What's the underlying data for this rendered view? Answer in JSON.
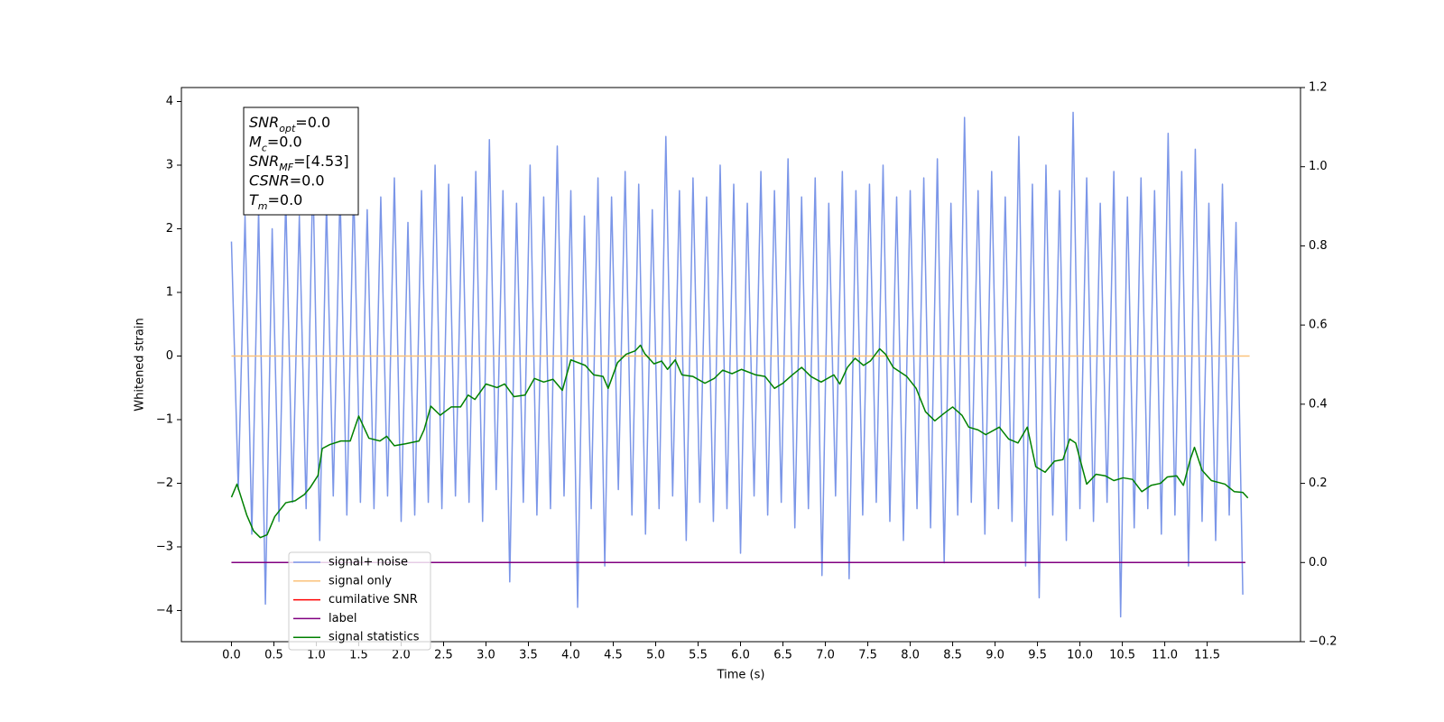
{
  "chart_data": {
    "type": "line",
    "xlabel": "Time (s)",
    "ylabel": "Whitened strain",
    "xlim": [
      -0.59,
      12.6
    ],
    "ylim": [
      -4.49,
      4.22
    ],
    "y2lim": [
      -0.2,
      1.2
    ],
    "xticks": [
      {
        "value": 0,
        "label": "0.0"
      },
      0.5,
      {
        "value": 1,
        "label": "1.0"
      },
      1.5,
      {
        "value": 2,
        "label": "2.0"
      },
      2.5,
      {
        "value": 3,
        "label": "3.0"
      },
      3.5,
      {
        "value": 4,
        "label": "4.0"
      },
      4.5,
      {
        "value": 5,
        "label": "5.0"
      },
      5.5,
      {
        "value": 6,
        "label": "6.0"
      },
      6.5,
      {
        "value": 7,
        "label": "7.0"
      },
      7.5,
      {
        "value": 8,
        "label": "8.0"
      },
      8.5,
      {
        "value": 9,
        "label": "9.0"
      },
      9.5,
      {
        "value": 10,
        "label": "10.0"
      },
      10.5,
      {
        "value": 11,
        "label": "11.0"
      },
      11.5
    ],
    "yticks": [
      {
        "value": -4,
        "label": "−4"
      },
      {
        "value": -3,
        "label": "−3"
      },
      {
        "value": -2,
        "label": "−2"
      },
      {
        "value": -1,
        "label": "−1"
      },
      0,
      1,
      2,
      3,
      4
    ],
    "y2ticks": [
      {
        "value": -0.2,
        "label": "−0.2"
      },
      {
        "value": 0,
        "label": "0.0"
      },
      0.2,
      0.4,
      0.6,
      0.8,
      {
        "value": 1,
        "label": "1.0"
      },
      1.2
    ],
    "legend": "lower left",
    "annotation": [
      {
        "main": "SNR",
        "sub": "opt",
        "rest": "=0.0"
      },
      {
        "main": "M",
        "sub": "c",
        "rest": "=0.0"
      },
      {
        "main": "SNR",
        "sub": "MF",
        "rest": "=[4.53]"
      },
      {
        "main": "CSNR",
        "rest": "=0.0"
      },
      {
        "main": "T",
        "sub": "m",
        "rest": "=0.0"
      }
    ],
    "series": [
      {
        "name": "signal+ noise",
        "color": "#7b96e8",
        "x": [
          0,
          0.08,
          0.16,
          0.24,
          0.32,
          0.4,
          0.48,
          0.56,
          0.64,
          0.72,
          0.8,
          0.88,
          0.96,
          1.04,
          1.12,
          1.2,
          1.28,
          1.36,
          1.44,
          1.52,
          1.6,
          1.68,
          1.76,
          1.84,
          1.92,
          2,
          2.08,
          2.16,
          2.24,
          2.32,
          2.4,
          2.48,
          2.56,
          2.64,
          2.72,
          2.8,
          2.88,
          2.96,
          3.04,
          3.12,
          3.2,
          3.28,
          3.36,
          3.44,
          3.52,
          3.6,
          3.68,
          3.76,
          3.84,
          3.92,
          4,
          4.08,
          4.16,
          4.24,
          4.32,
          4.4,
          4.48,
          4.56,
          4.64,
          4.72,
          4.8,
          4.88,
          4.96,
          5.04,
          5.12,
          5.2,
          5.28,
          5.36,
          5.44,
          5.52,
          5.6,
          5.68,
          5.76,
          5.84,
          5.92,
          6,
          6.08,
          6.16,
          6.24,
          6.32,
          6.4,
          6.48,
          6.56,
          6.64,
          6.72,
          6.8,
          6.88,
          6.96,
          7.04,
          7.12,
          7.2,
          7.28,
          7.36,
          7.44,
          7.52,
          7.6,
          7.68,
          7.76,
          7.84,
          7.92,
          8,
          8.08,
          8.16,
          8.24,
          8.32,
          8.4,
          8.48,
          8.56,
          8.64,
          8.72,
          8.8,
          8.88,
          8.96,
          9.04,
          9.12,
          9.2,
          9.28,
          9.36,
          9.44,
          9.52,
          9.6,
          9.68,
          9.76,
          9.84,
          9.92,
          10,
          10.08,
          10.16,
          10.24,
          10.32,
          10.4,
          10.48,
          10.56,
          10.64,
          10.72,
          10.8,
          10.88,
          10.96,
          11.04,
          11.12,
          11.2,
          11.28,
          11.36,
          11.44,
          11.52,
          11.6,
          11.68,
          11.76,
          11.84,
          11.92
        ],
        "values": [
          1.8,
          -2.1,
          2.2,
          -2.8,
          2.3,
          -3.9,
          2.0,
          -2.6,
          2.5,
          -2.3,
          2.2,
          -2.4,
          2.9,
          -2.9,
          2.4,
          -2.2,
          2.6,
          -2.5,
          2.7,
          -2.3,
          2.3,
          -2.4,
          2.5,
          -2.2,
          2.8,
          -2.6,
          2.1,
          -2.5,
          2.6,
          -2.3,
          3.0,
          -2.4,
          2.7,
          -2.2,
          2.5,
          -2.3,
          2.9,
          -2.6,
          3.4,
          -2.1,
          2.6,
          -3.55,
          2.4,
          -2.3,
          3.0,
          -2.5,
          2.5,
          -2.4,
          3.3,
          -2.2,
          2.6,
          -3.95,
          2.2,
          -2.4,
          2.8,
          -3.3,
          2.5,
          -2.1,
          2.9,
          -2.5,
          2.7,
          -2.8,
          2.3,
          -2.4,
          3.45,
          -2.2,
          2.6,
          -2.9,
          2.8,
          -2.3,
          2.5,
          -2.6,
          3.0,
          -2.4,
          2.7,
          -3.1,
          2.4,
          -2.2,
          2.9,
          -2.5,
          2.6,
          -2.3,
          3.1,
          -2.7,
          2.5,
          -2.4,
          2.8,
          -3.45,
          2.4,
          -2.2,
          2.9,
          -3.5,
          2.6,
          -2.5,
          2.7,
          -2.3,
          3.0,
          -2.6,
          2.5,
          -2.9,
          2.6,
          -2.4,
          2.8,
          -2.7,
          3.1,
          -3.25,
          2.4,
          -2.5,
          3.75,
          -2.3,
          2.6,
          -2.8,
          2.9,
          -2.4,
          2.5,
          -2.6,
          3.45,
          -3.3,
          2.7,
          -3.8,
          3.0,
          -2.5,
          2.6,
          -2.9,
          3.83,
          -2.4,
          2.8,
          -2.6,
          2.4,
          -2.3,
          2.9,
          -4.1,
          2.5,
          -2.7,
          2.8,
          -2.4,
          2.6,
          -2.8,
          3.5,
          -2.5,
          2.9,
          -3.3,
          3.25,
          -2.6,
          2.4,
          -2.9,
          2.7,
          -2.5,
          2.1,
          -3.75
        ]
      },
      {
        "name": "signal only",
        "color": "#fbc27a",
        "x": [
          0,
          12
        ],
        "values": [
          0,
          0
        ]
      },
      {
        "name": "cumilative SNR",
        "color": "#ff0000",
        "axis": "y2",
        "x": [
          0,
          11.95
        ],
        "values": [
          0,
          0
        ]
      },
      {
        "name": "label",
        "color": "#800080",
        "axis": "y2",
        "x": [
          0,
          11.95
        ],
        "values": [
          0,
          0
        ]
      },
      {
        "name": "signal statistics",
        "color": "#008000",
        "axis": "y2",
        "x": [
          0,
          0.065,
          0.18,
          0.26,
          0.34,
          0.42,
          0.51,
          0.64,
          0.75,
          0.86,
          0.93,
          1.02,
          1.07,
          1.16,
          1.29,
          1.4,
          1.5,
          1.62,
          1.75,
          1.83,
          1.92,
          2.05,
          2.21,
          2.27,
          2.35,
          2.46,
          2.59,
          2.7,
          2.79,
          2.87,
          3.0,
          3.13,
          3.22,
          3.33,
          3.46,
          3.57,
          3.68,
          3.79,
          3.9,
          4.0,
          4.17,
          4.27,
          4.38,
          4.44,
          4.55,
          4.65,
          4.76,
          4.82,
          4.87,
          4.98,
          5.07,
          5.14,
          5.23,
          5.31,
          5.44,
          5.58,
          5.69,
          5.79,
          5.9,
          6.01,
          6.18,
          6.29,
          6.4,
          6.5,
          6.61,
          6.72,
          6.83,
          6.95,
          7.1,
          7.17,
          7.26,
          7.35,
          7.45,
          7.53,
          7.64,
          7.71,
          7.8,
          7.96,
          8.07,
          8.18,
          8.29,
          8.4,
          8.5,
          8.61,
          8.69,
          8.8,
          8.89,
          9.05,
          9.16,
          9.27,
          9.38,
          9.48,
          9.59,
          9.7,
          9.8,
          9.88,
          9.95,
          10.08,
          10.19,
          10.3,
          10.4,
          10.51,
          10.62,
          10.73,
          10.84,
          10.95,
          11.03,
          11.14,
          11.22,
          11.3,
          11.35,
          11.44,
          11.55,
          11.71,
          11.82,
          11.92,
          11.98
        ],
        "values": [
          0.165,
          0.198,
          0.12,
          0.08,
          0.063,
          0.07,
          0.116,
          0.151,
          0.156,
          0.172,
          0.19,
          0.22,
          0.288,
          0.298,
          0.307,
          0.307,
          0.37,
          0.314,
          0.307,
          0.319,
          0.295,
          0.3,
          0.307,
          0.335,
          0.395,
          0.372,
          0.393,
          0.393,
          0.423,
          0.412,
          0.451,
          0.442,
          0.451,
          0.419,
          0.423,
          0.465,
          0.456,
          0.463,
          0.435,
          0.512,
          0.498,
          0.474,
          0.47,
          0.44,
          0.505,
          0.526,
          0.535,
          0.549,
          0.528,
          0.502,
          0.509,
          0.488,
          0.512,
          0.474,
          0.47,
          0.453,
          0.465,
          0.486,
          0.477,
          0.488,
          0.474,
          0.47,
          0.44,
          0.453,
          0.474,
          0.493,
          0.47,
          0.456,
          0.474,
          0.451,
          0.493,
          0.516,
          0.498,
          0.509,
          0.54,
          0.526,
          0.493,
          0.47,
          0.44,
          0.381,
          0.358,
          0.377,
          0.393,
          0.372,
          0.342,
          0.335,
          0.323,
          0.342,
          0.312,
          0.302,
          0.342,
          0.242,
          0.228,
          0.256,
          0.26,
          0.312,
          0.302,
          0.198,
          0.223,
          0.219,
          0.207,
          0.214,
          0.21,
          0.179,
          0.195,
          0.2,
          0.216,
          0.219,
          0.195,
          0.26,
          0.291,
          0.233,
          0.207,
          0.198,
          0.179,
          0.177,
          0.163
        ]
      }
    ]
  }
}
